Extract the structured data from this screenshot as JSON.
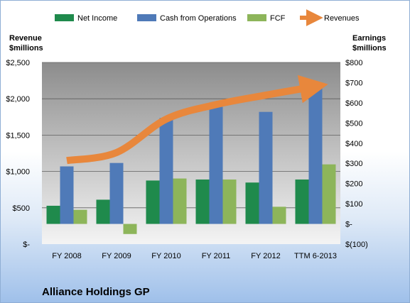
{
  "chart_data": {
    "type": "bar",
    "company": "Alliance Holdings GP",
    "categories": [
      "FY 2008",
      "FY 2009",
      "FY 2010",
      "FY 2011",
      "FY 2012",
      "TTM 6-2013"
    ],
    "series": [
      {
        "name": "Net Income",
        "axis": "right",
        "color": "#1f8a4c",
        "values": [
          90,
          120,
          215,
          220,
          205,
          220
        ]
      },
      {
        "name": "Cash from Operations",
        "axis": "right",
        "color": "#4f7ab8",
        "values": [
          285,
          302,
          525,
          580,
          555,
          680
        ]
      },
      {
        "name": "FCF",
        "axis": "right",
        "color": "#8db55a",
        "values": [
          70,
          -50,
          225,
          220,
          85,
          295
        ]
      },
      {
        "name": "Revenues",
        "axis": "left",
        "color": "#e8873c",
        "type": "line",
        "values": [
          1150,
          1260,
          1720,
          1920,
          2050,
          2170
        ]
      }
    ],
    "left_axis": {
      "title_line1": "Revenue",
      "title_line2": "$millions",
      "ylim": [
        0,
        2500
      ],
      "ticks": [
        0,
        500,
        1000,
        1500,
        2000,
        2500
      ],
      "tick_labels": [
        "$-",
        "$500",
        "$1,000",
        "$1,500",
        "$2,000",
        "$2,500"
      ]
    },
    "right_axis": {
      "title_line1": "Earnings",
      "title_line2": "$millions",
      "ylim": [
        -100,
        800
      ],
      "ticks": [
        -100,
        0,
        100,
        200,
        300,
        400,
        500,
        600,
        700,
        800
      ],
      "tick_labels": [
        "$(100)",
        "$-",
        "$100",
        "$200",
        "$300",
        "$400",
        "$500",
        "$600",
        "$700",
        "$800"
      ]
    },
    "grid": true,
    "legend": "top"
  }
}
